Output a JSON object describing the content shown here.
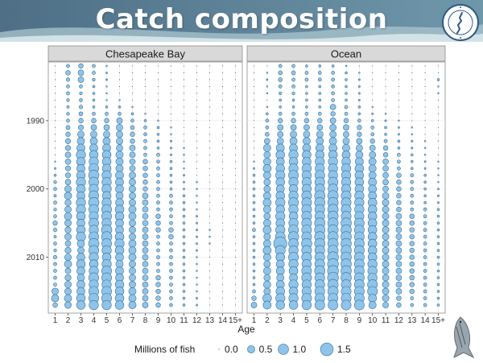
{
  "slide": {
    "title": "Catch composition"
  },
  "colors": {
    "banner_dark": "#4e6f86",
    "banner_light": "#a9c6cf",
    "bubble_fill": "#8ec4ea",
    "bubble_stroke": "#3f6f93",
    "panel_bg": "#ffffff",
    "strip_bg": "#d9d9d9",
    "grid": "#ebebeb"
  },
  "icons": {
    "logo": "atlantic-states-commission-seal-icon",
    "fish": "striped-bass-icon"
  },
  "chart_data": {
    "type": "scatter",
    "subtype": "bubble-grid",
    "panels": [
      "Chesapeake Bay",
      "Ocean"
    ],
    "x": [
      "1",
      "2",
      "3",
      "4",
      "5",
      "6",
      "7",
      "8",
      "9",
      "10",
      "11",
      "12",
      "13",
      "14",
      "15+"
    ],
    "xlabel": "Age",
    "ylabel": "",
    "years": [
      1982,
      2017
    ],
    "y_ticks": [
      "1990",
      "2000",
      "2010"
    ],
    "y_reversed": true,
    "size_legend": {
      "title": "Millions of fish",
      "values": [
        0.0,
        0.5,
        1.0,
        1.5
      ],
      "labels": [
        "0.0",
        "0.5",
        "1.0",
        "1.5"
      ]
    },
    "grid": true,
    "legend_position": "bottom",
    "catch_millions": {
      "Chesapeake Bay": {
        "1": [
          0.0,
          0.0,
          0.0,
          0.0,
          0.0,
          0.0,
          0.0,
          0.0,
          0.0,
          0.0,
          0.0,
          0.0,
          0.01,
          0.01,
          0.02,
          0.03,
          0.05,
          0.08,
          0.1,
          0.06,
          0.1,
          0.08,
          0.1,
          0.18,
          0.12,
          0.06,
          0.1,
          0.08,
          0.12,
          0.1,
          0.1,
          0.1,
          0.1,
          0.4,
          0.5,
          0.2
        ],
        "2": [
          0.1,
          0.2,
          0.12,
          0.1,
          0.1,
          0.08,
          0.06,
          0.08,
          0.1,
          0.15,
          0.2,
          0.25,
          0.25,
          0.3,
          0.3,
          0.25,
          0.25,
          0.3,
          0.4,
          0.5,
          0.35,
          0.4,
          0.5,
          0.4,
          0.35,
          0.4,
          0.3,
          0.35,
          0.4,
          0.5,
          0.3,
          0.35,
          0.4,
          0.4,
          0.5,
          0.4
        ],
        "3": [
          0.2,
          0.3,
          0.3,
          0.1,
          0.08,
          0.1,
          0.12,
          0.15,
          0.2,
          0.25,
          0.4,
          0.5,
          0.6,
          0.8,
          0.7,
          0.6,
          0.7,
          0.8,
          0.7,
          0.6,
          0.8,
          0.8,
          0.7,
          0.6,
          0.7,
          0.8,
          0.5,
          0.4,
          0.6,
          0.7,
          0.6,
          0.5,
          0.6,
          0.6,
          0.7,
          0.7
        ],
        "4": [
          0.1,
          0.1,
          0.08,
          0.05,
          0.05,
          0.05,
          0.05,
          0.1,
          0.2,
          0.3,
          0.4,
          0.5,
          0.6,
          0.7,
          0.8,
          0.9,
          1.0,
          0.9,
          0.8,
          0.9,
          1.0,
          0.9,
          0.8,
          0.9,
          0.8,
          0.9,
          1.0,
          0.9,
          0.8,
          0.7,
          0.8,
          0.9,
          0.8,
          0.9,
          0.9,
          0.8
        ],
        "5": [
          0.02,
          0.03,
          0.03,
          0.02,
          0.02,
          0.02,
          0.05,
          0.1,
          0.2,
          0.3,
          0.4,
          0.5,
          0.6,
          0.7,
          0.7,
          0.7,
          0.8,
          0.8,
          0.8,
          0.7,
          0.8,
          0.9,
          0.9,
          0.8,
          1.0,
          1.0,
          0.9,
          0.8,
          0.7,
          0.8,
          0.9,
          0.9,
          0.8,
          0.9,
          0.9,
          0.8
        ],
        "6": [
          0.01,
          0.01,
          0.01,
          0.01,
          0.01,
          0.02,
          0.05,
          0.1,
          0.3,
          0.4,
          0.4,
          0.4,
          0.4,
          0.5,
          0.5,
          0.5,
          0.6,
          0.6,
          0.6,
          0.5,
          0.6,
          0.7,
          0.7,
          0.6,
          0.6,
          0.7,
          0.8,
          0.7,
          0.6,
          0.5,
          0.6,
          0.6,
          0.7,
          0.7,
          0.7,
          0.7
        ],
        "7": [
          0.0,
          0.0,
          0.0,
          0.0,
          0.0,
          0.01,
          0.02,
          0.05,
          0.1,
          0.15,
          0.2,
          0.2,
          0.3,
          0.3,
          0.3,
          0.3,
          0.4,
          0.4,
          0.4,
          0.4,
          0.4,
          0.5,
          0.5,
          0.4,
          0.4,
          0.4,
          0.5,
          0.5,
          0.5,
          0.4,
          0.4,
          0.4,
          0.4,
          0.5,
          0.5,
          0.5
        ],
        "8": [
          0.0,
          0.0,
          0.0,
          0.0,
          0.0,
          0.0,
          0.01,
          0.02,
          0.05,
          0.1,
          0.1,
          0.1,
          0.1,
          0.1,
          0.2,
          0.2,
          0.2,
          0.2,
          0.2,
          0.3,
          0.3,
          0.3,
          0.3,
          0.3,
          0.3,
          0.3,
          0.3,
          0.3,
          0.3,
          0.3,
          0.3,
          0.3,
          0.3,
          0.3,
          0.3,
          0.3
        ],
        "9": [
          0.0,
          0.0,
          0.0,
          0.0,
          0.0,
          0.0,
          0.0,
          0.01,
          0.02,
          0.05,
          0.05,
          0.05,
          0.05,
          0.1,
          0.1,
          0.1,
          0.1,
          0.1,
          0.1,
          0.1,
          0.1,
          0.1,
          0.2,
          0.2,
          0.2,
          0.1,
          0.1,
          0.1,
          0.1,
          0.1,
          0.1,
          0.2,
          0.2,
          0.2,
          0.2,
          0.2
        ],
        "10": [
          0.0,
          0.0,
          0.0,
          0.0,
          0.0,
          0.0,
          0.0,
          0.0,
          0.01,
          0.02,
          0.02,
          0.03,
          0.03,
          0.03,
          0.05,
          0.05,
          0.05,
          0.05,
          0.05,
          0.1,
          0.1,
          0.1,
          0.1,
          0.1,
          0.2,
          0.2,
          0.1,
          0.1,
          0.1,
          0.1,
          0.1,
          0.1,
          0.1,
          0.1,
          0.1,
          0.1
        ],
        "11": [
          0.0,
          0.0,
          0.0,
          0.0,
          0.0,
          0.0,
          0.0,
          0.0,
          0.0,
          0.01,
          0.01,
          0.01,
          0.02,
          0.02,
          0.02,
          0.02,
          0.03,
          0.03,
          0.03,
          0.05,
          0.05,
          0.05,
          0.05,
          0.05,
          0.05,
          0.05,
          0.05,
          0.05,
          0.05,
          0.05,
          0.05,
          0.05,
          0.05,
          0.05,
          0.05,
          0.05
        ],
        "12": [
          0.0,
          0.0,
          0.0,
          0.0,
          0.0,
          0.0,
          0.0,
          0.0,
          0.0,
          0.0,
          0.01,
          0.01,
          0.01,
          0.01,
          0.01,
          0.01,
          0.01,
          0.02,
          0.02,
          0.02,
          0.02,
          0.02,
          0.03,
          0.03,
          0.03,
          0.03,
          0.03,
          0.03,
          0.02,
          0.02,
          0.02,
          0.02,
          0.02,
          0.02,
          0.03,
          0.03
        ],
        "13": [
          0.0,
          0.0,
          0.0,
          0.0,
          0.0,
          0.0,
          0.0,
          0.0,
          0.0,
          0.0,
          0.0,
          0.0,
          0.01,
          0.01,
          0.01,
          0.01,
          0.01,
          0.01,
          0.01,
          0.01,
          0.01,
          0.01,
          0.01,
          0.01,
          0.02,
          0.02,
          0.02,
          0.01,
          0.01,
          0.01,
          0.01,
          0.01,
          0.01,
          0.01,
          0.01,
          0.01
        ],
        "14": [
          0.0,
          0.0,
          0.0,
          0.0,
          0.0,
          0.0,
          0.0,
          0.0,
          0.0,
          0.0,
          0.0,
          0.0,
          0.0,
          0.0,
          0.0,
          0.01,
          0.01,
          0.01,
          0.01,
          0.01,
          0.01,
          0.01,
          0.01,
          0.01,
          0.01,
          0.01,
          0.01,
          0.01,
          0.01,
          0.01,
          0.01,
          0.01,
          0.01,
          0.01,
          0.01,
          0.01
        ],
        "15+": [
          0.0,
          0.0,
          0.0,
          0.0,
          0.0,
          0.0,
          0.0,
          0.0,
          0.0,
          0.0,
          0.0,
          0.0,
          0.0,
          0.0,
          0.0,
          0.01,
          0.01,
          0.01,
          0.01,
          0.01,
          0.01,
          0.01,
          0.01,
          0.01,
          0.01,
          0.01,
          0.01,
          0.01,
          0.01,
          0.01,
          0.01,
          0.01,
          0.01,
          0.01,
          0.01,
          0.01
        ]
      },
      "Ocean": {
        "1": [
          0.0,
          0.0,
          0.0,
          0.0,
          0.0,
          0.0,
          0.0,
          0.0,
          0.0,
          0.0,
          0.0,
          0.0,
          0.01,
          0.01,
          0.02,
          0.03,
          0.05,
          0.05,
          0.05,
          0.05,
          0.05,
          0.05,
          0.05,
          0.05,
          0.1,
          0.05,
          0.05,
          0.05,
          0.05,
          0.05,
          0.05,
          0.05,
          0.05,
          0.1,
          0.2,
          0.3
        ],
        "2": [
          0.01,
          0.02,
          0.03,
          0.02,
          0.02,
          0.01,
          0.02,
          0.05,
          0.1,
          0.1,
          0.15,
          0.3,
          0.5,
          0.4,
          0.5,
          0.6,
          0.5,
          0.4,
          0.4,
          0.5,
          0.6,
          0.5,
          0.4,
          0.5,
          0.6,
          0.4,
          0.5,
          0.6,
          0.5,
          0.4,
          0.5,
          0.4,
          0.5,
          0.4,
          0.7,
          0.6
        ],
        "3": [
          0.1,
          0.15,
          0.15,
          0.1,
          0.08,
          0.05,
          0.05,
          0.1,
          0.2,
          0.3,
          0.3,
          0.4,
          0.6,
          0.7,
          0.6,
          0.7,
          0.8,
          0.7,
          0.6,
          0.7,
          0.8,
          0.7,
          0.8,
          0.7,
          0.8,
          0.9,
          1.6,
          0.9,
          0.7,
          0.6,
          0.6,
          0.5,
          0.6,
          0.7,
          0.8,
          0.7
        ],
        "4": [
          0.1,
          0.15,
          0.1,
          0.1,
          0.08,
          0.05,
          0.05,
          0.1,
          0.2,
          0.3,
          0.4,
          0.5,
          0.6,
          0.8,
          0.7,
          0.8,
          0.9,
          0.8,
          0.7,
          0.8,
          0.9,
          0.8,
          0.7,
          0.8,
          0.9,
          1.0,
          0.9,
          0.8,
          0.9,
          0.8,
          0.7,
          0.6,
          0.8,
          0.7,
          0.8,
          0.7
        ],
        "5": [
          0.05,
          0.1,
          0.1,
          0.05,
          0.05,
          0.05,
          0.05,
          0.1,
          0.2,
          0.3,
          0.4,
          0.5,
          0.6,
          0.7,
          0.7,
          0.8,
          0.8,
          0.8,
          0.8,
          0.9,
          0.9,
          0.9,
          0.9,
          0.9,
          0.9,
          0.9,
          1.0,
          0.9,
          0.9,
          0.8,
          0.9,
          0.9,
          0.8,
          0.8,
          0.9,
          0.8
        ],
        "6": [
          0.05,
          0.1,
          0.1,
          0.05,
          0.05,
          0.05,
          0.05,
          0.1,
          0.2,
          0.3,
          0.4,
          0.5,
          0.6,
          0.7,
          0.8,
          0.8,
          0.9,
          0.9,
          0.9,
          1.0,
          1.0,
          0.9,
          0.9,
          1.0,
          1.0,
          1.0,
          1.0,
          0.9,
          0.9,
          0.9,
          1.0,
          0.9,
          0.9,
          0.9,
          0.9,
          0.9
        ],
        "7": [
          0.05,
          0.1,
          0.1,
          0.1,
          0.1,
          0.1,
          0.3,
          0.2,
          0.3,
          0.4,
          0.4,
          0.5,
          0.6,
          0.7,
          0.8,
          0.8,
          0.8,
          0.9,
          0.9,
          1.0,
          1.0,
          1.0,
          1.0,
          1.0,
          1.0,
          1.0,
          1.0,
          1.0,
          1.1,
          1.1,
          1.1,
          1.1,
          1.0,
          1.0,
          0.9,
          0.9
        ],
        "8": [
          0.02,
          0.05,
          0.05,
          0.05,
          0.05,
          0.05,
          0.1,
          0.1,
          0.2,
          0.3,
          0.3,
          0.4,
          0.5,
          0.6,
          0.7,
          0.8,
          0.8,
          0.8,
          0.8,
          0.9,
          0.9,
          0.9,
          0.9,
          1.0,
          1.0,
          1.0,
          1.0,
          1.0,
          1.0,
          1.0,
          1.0,
          1.0,
          0.9,
          0.9,
          0.9,
          0.9
        ],
        "9": [
          0.01,
          0.02,
          0.03,
          0.03,
          0.03,
          0.03,
          0.05,
          0.05,
          0.1,
          0.2,
          0.2,
          0.3,
          0.4,
          0.5,
          0.6,
          0.7,
          0.7,
          0.7,
          0.7,
          0.8,
          0.8,
          0.8,
          0.8,
          0.9,
          0.9,
          0.9,
          0.9,
          0.9,
          0.9,
          0.9,
          0.9,
          0.9,
          0.9,
          0.9,
          0.9,
          0.9
        ],
        "10": [
          0.0,
          0.01,
          0.01,
          0.01,
          0.01,
          0.01,
          0.02,
          0.03,
          0.05,
          0.1,
          0.1,
          0.2,
          0.3,
          0.4,
          0.5,
          0.5,
          0.5,
          0.6,
          0.6,
          0.6,
          0.7,
          0.7,
          0.7,
          0.7,
          0.7,
          0.7,
          0.7,
          0.7,
          0.7,
          0.8,
          0.8,
          0.8,
          0.9,
          0.9,
          0.6,
          0.5
        ],
        "11": [
          0.0,
          0.0,
          0.0,
          0.01,
          0.01,
          0.01,
          0.01,
          0.02,
          0.03,
          0.05,
          0.05,
          0.1,
          0.2,
          0.2,
          0.3,
          0.3,
          0.3,
          0.3,
          0.3,
          0.4,
          0.4,
          0.4,
          0.4,
          0.4,
          0.4,
          0.4,
          0.4,
          0.4,
          0.4,
          0.4,
          0.4,
          0.4,
          0.4,
          0.4,
          0.4,
          0.3
        ],
        "12": [
          0.0,
          0.0,
          0.0,
          0.0,
          0.01,
          0.01,
          0.01,
          0.01,
          0.02,
          0.03,
          0.03,
          0.05,
          0.05,
          0.1,
          0.1,
          0.1,
          0.2,
          0.2,
          0.2,
          0.2,
          0.2,
          0.2,
          0.3,
          0.3,
          0.3,
          0.3,
          0.3,
          0.3,
          0.3,
          0.3,
          0.3,
          0.3,
          0.3,
          0.3,
          0.2,
          0.2
        ],
        "13": [
          0.0,
          0.0,
          0.0,
          0.0,
          0.0,
          0.0,
          0.01,
          0.01,
          0.01,
          0.02,
          0.02,
          0.03,
          0.03,
          0.05,
          0.05,
          0.05,
          0.1,
          0.1,
          0.1,
          0.1,
          0.1,
          0.1,
          0.2,
          0.2,
          0.2,
          0.2,
          0.2,
          0.2,
          0.2,
          0.2,
          0.2,
          0.2,
          0.2,
          0.2,
          0.1,
          0.1
        ],
        "14": [
          0.0,
          0.0,
          0.0,
          0.0,
          0.0,
          0.0,
          0.0,
          0.0,
          0.01,
          0.01,
          0.01,
          0.02,
          0.02,
          0.02,
          0.03,
          0.03,
          0.05,
          0.05,
          0.05,
          0.05,
          0.05,
          0.1,
          0.1,
          0.1,
          0.1,
          0.1,
          0.1,
          0.1,
          0.1,
          0.1,
          0.1,
          0.1,
          0.1,
          0.1,
          0.1,
          0.1
        ],
        "15+": [
          0.01,
          0.01,
          0.05,
          0.02,
          0.02,
          0.01,
          0.01,
          0.01,
          0.01,
          0.01,
          0.01,
          0.01,
          0.01,
          0.01,
          0.02,
          0.02,
          0.02,
          0.02,
          0.03,
          0.03,
          0.03,
          0.05,
          0.05,
          0.05,
          0.05,
          0.05,
          0.05,
          0.05,
          0.05,
          0.05,
          0.05,
          0.05,
          0.05,
          0.05,
          0.05,
          0.05
        ]
      }
    }
  }
}
